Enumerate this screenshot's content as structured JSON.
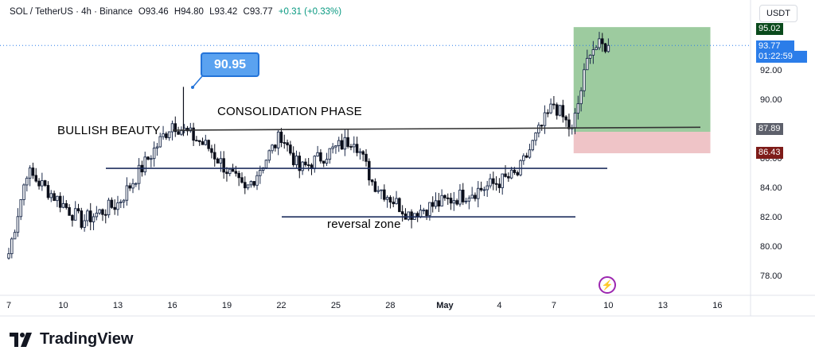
{
  "header": {
    "symbol": "SOL / TetherUS · 4h · Binance",
    "open": "O93.46",
    "high": "H94.80",
    "low": "L93.42",
    "close": "C93.77",
    "change": "+0.31 (+0.33%)"
  },
  "currency": "USDT",
  "colors": {
    "up": "#089981",
    "down": "#0b0e1a",
    "profit": "#7cba7f",
    "loss": "#eab0b4",
    "accent": "#2962ff"
  },
  "price_tags": [
    {
      "label": "95.02",
      "value": 95.02,
      "color": "#0a4a1c"
    },
    {
      "label": "93.77",
      "value": 93.77,
      "color": "#2b7de9"
    },
    {
      "label": "01:22:59",
      "value": 93.77,
      "color": "#2b7de9"
    },
    {
      "label": "87.89",
      "value": 87.89,
      "color": "#5d606b"
    },
    {
      "label": "86.43",
      "value": 86.43,
      "color": "#7e1c19"
    }
  ],
  "annotations": {
    "price_bubble": "90.95",
    "bullish": "BULLISH BEAUTY",
    "consolidation": "CONSOLIDATION PHASE",
    "reversal": "reversal zone"
  },
  "levels": [
    {
      "name": "resistance-trendline",
      "x1": 16.0,
      "y1": 88.0,
      "x2": 15.0,
      "y2": 88.2
    },
    {
      "name": "support-line",
      "x1": 8.6,
      "y1": 85.4,
      "x2": 10.0,
      "y2": 85.4
    },
    {
      "name": "reversal-line",
      "x1": 21.0,
      "y1": 82.1,
      "x2": 8.0,
      "y2": 82.1
    }
  ],
  "position": {
    "entry": 87.89,
    "target": 95.02,
    "stop": 86.43,
    "start": "May 7",
    "end": "May 14"
  },
  "brand": "TradingView",
  "chart_data": {
    "type": "candlestick",
    "title": "SOL / TetherUS · 4h · Binance",
    "x_ticks": [
      "7",
      "10",
      "13",
      "16",
      "19",
      "22",
      "25",
      "28",
      "May",
      "4",
      "7",
      "10",
      "13",
      "16"
    ],
    "y_ticks": [
      "78.00",
      "80.00",
      "82.00",
      "84.00",
      "86.00",
      "88.00",
      "90.00",
      "92.00",
      "94.00"
    ],
    "ylim": [
      77.0,
      96.5
    ],
    "key_points": [
      {
        "x": "Apr 7",
        "close": 79.6
      },
      {
        "x": "Apr 8",
        "close": 85.2
      },
      {
        "x": "Apr 11",
        "close": 81.8
      },
      {
        "x": "Apr 13",
        "close": 83.0
      },
      {
        "x": "Apr 16",
        "close": 88.5
      },
      {
        "x": "Apr 16",
        "high": 90.95
      },
      {
        "x": "Apr 18",
        "close": 86.8
      },
      {
        "x": "Apr 20",
        "close": 83.8
      },
      {
        "x": "Apr 22",
        "close": 87.7
      },
      {
        "x": "Apr 23",
        "close": 85.3
      },
      {
        "x": "Apr 26",
        "close": 87.5
      },
      {
        "x": "Apr 27",
        "close": 84.5
      },
      {
        "x": "Apr 29",
        "close": 82.3
      },
      {
        "x": "May 2",
        "close": 84.0
      },
      {
        "x": "May 4",
        "close": 85.0
      },
      {
        "x": "May 5",
        "close": 87.5
      },
      {
        "x": "May 6",
        "close": 89.8
      },
      {
        "x": "May 7",
        "close": 87.9
      },
      {
        "x": "May 8",
        "close": 93.6
      },
      {
        "x": "May 9",
        "close": 93.77
      }
    ]
  }
}
